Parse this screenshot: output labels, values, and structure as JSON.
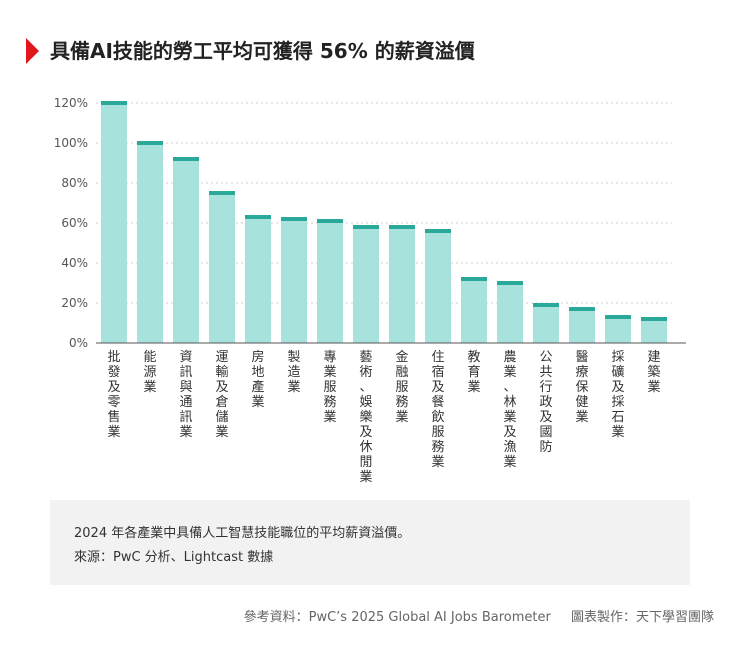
{
  "header": {
    "title": "具備AI技能的勞工平均可獲得 56% 的薪資溢價"
  },
  "colors": {
    "accent": "#e0161c",
    "bar_fill": "#a8e2dc",
    "bar_cap": "#2aa89a",
    "grid": "#cfcfcf",
    "axis": "#555555"
  },
  "chart_data": {
    "type": "bar",
    "title": "",
    "xlabel": "",
    "ylabel": "",
    "ylim": [
      0,
      120
    ],
    "yticks": [
      0,
      20,
      40,
      60,
      80,
      100,
      120
    ],
    "ytick_labels": [
      "0%",
      "20%",
      "40%",
      "60%",
      "80%",
      "100%",
      "120%"
    ],
    "grid": "horizontal-dotted",
    "categories": [
      "批發及零售業",
      "能源業",
      "資訊與通訊業",
      "運輸及倉儲業",
      "房地產業",
      "製造業",
      "專業服務業",
      "藝術、娛樂及休閒業",
      "金融服務業",
      "住宿及餐飲服務業",
      "教育業",
      "農業、林業及漁業",
      "公共行政及國防",
      "醫療保健業",
      "採礦及採石業",
      "建築業"
    ],
    "values": [
      121,
      101,
      93,
      76,
      64,
      63,
      62,
      59,
      59,
      57,
      33,
      31,
      20,
      18,
      14,
      13
    ]
  },
  "note": {
    "line1": "2024 年各產業中具備人工智慧技能職位的平均薪資溢價。",
    "line2": "來源：PwC 分析、Lightcast 數據"
  },
  "footer": {
    "reference": "參考資料：PwC’s 2025 Global AI Jobs Barometer",
    "credit": "圖表製作：天下學習團隊"
  }
}
